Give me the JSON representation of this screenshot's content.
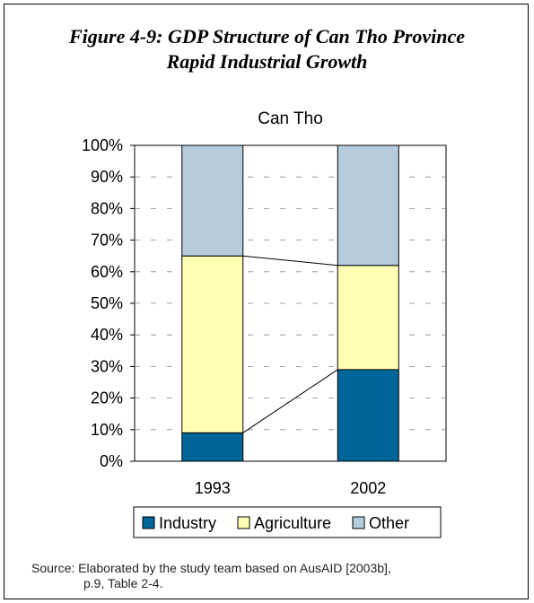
{
  "figure": {
    "title_line1": "Figure 4-9: GDP Structure of Can Tho Province",
    "title_line2": "Rapid Industrial Growth"
  },
  "source": {
    "line1": "Source: Elaborated by the study team based on AusAID [2003b],",
    "line2": "p.9, Table 2-4."
  },
  "chart_data": {
    "type": "bar",
    "stacked": true,
    "percent": true,
    "title": "Can Tho",
    "categories": [
      "1993",
      "2002"
    ],
    "series": [
      {
        "name": "Industry",
        "values": [
          9,
          29
        ],
        "color": "#006699"
      },
      {
        "name": "Agriculture",
        "values": [
          56,
          33
        ],
        "color": "#FFFFB4"
      },
      {
        "name": "Other",
        "values": [
          35,
          38
        ],
        "color": "#B4CCDC"
      }
    ],
    "ylim": [
      0,
      100
    ],
    "yticks": [
      "0%",
      "10%",
      "20%",
      "30%",
      "40%",
      "50%",
      "60%",
      "70%",
      "80%",
      "90%",
      "100%"
    ],
    "grid": true,
    "series_connector_lines": true,
    "legend_position": "bottom"
  }
}
